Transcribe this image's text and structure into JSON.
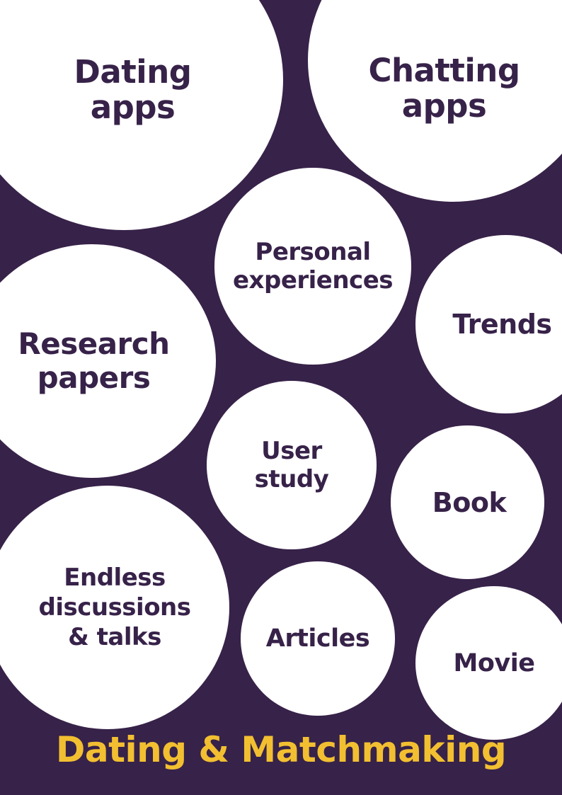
{
  "colors": {
    "background": "#372249",
    "bubble": "#ffffff",
    "bubble_text": "#372249",
    "title": "#f2bf31"
  },
  "bubbles": {
    "dating_apps": {
      "line1": "Dating",
      "line2": "apps"
    },
    "chatting_apps": {
      "line1": "Chatting",
      "line2": "apps"
    },
    "personal_experiences": {
      "line1": "Personal",
      "line2": "experiences"
    },
    "trends": {
      "line1": "Trends"
    },
    "research_papers": {
      "line1": "Research",
      "line2": "papers"
    },
    "user_study": {
      "line1": "User",
      "line2": "study"
    },
    "book": {
      "line1": "Book"
    },
    "endless_discussions": {
      "line1": "Endless",
      "line2": "discussions",
      "line3": "& talks"
    },
    "articles": {
      "line1": "Articles"
    },
    "movie": {
      "line1": "Movie"
    }
  },
  "title": "Dating & Matchmaking"
}
